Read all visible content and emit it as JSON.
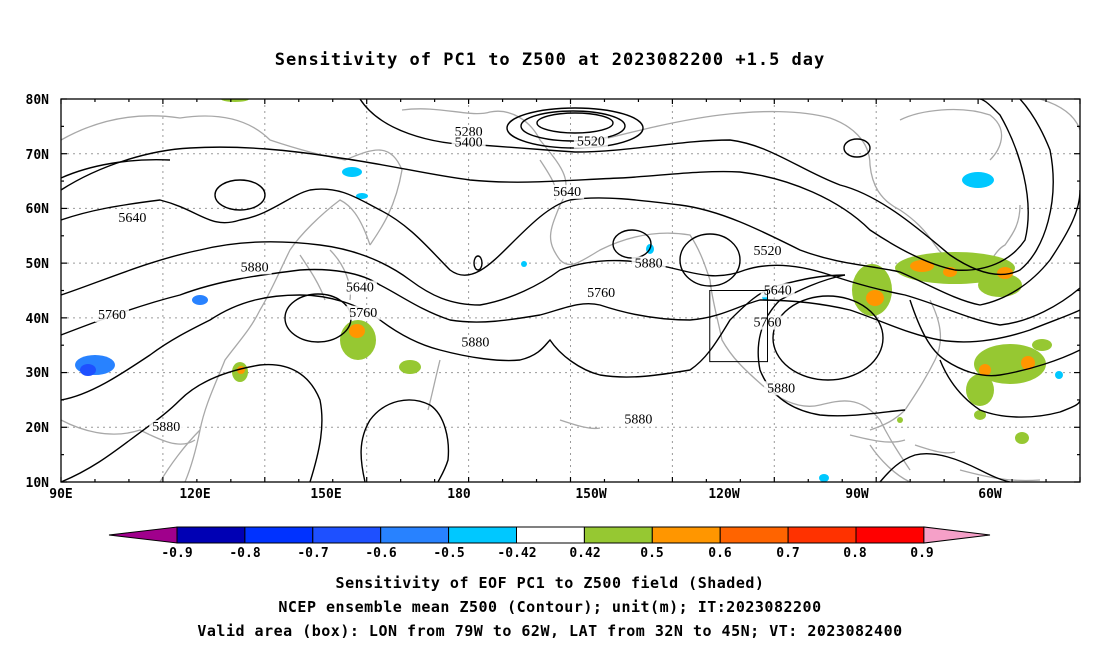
{
  "title": "Sensitivity of PC1 to Z500 at 2023082200 +1.5 day",
  "map": {
    "lat_labels": [
      "80N",
      "70N",
      "60N",
      "50N",
      "40N",
      "30N",
      "20N",
      "10N"
    ],
    "lon_labels": [
      "90E",
      "120E",
      "150E",
      "180",
      "150W",
      "120W",
      "90W",
      "60W"
    ],
    "contour_labels": [
      {
        "text": "5280",
        "lon": -150,
        "lat": 73.2
      },
      {
        "text": "5400",
        "lon": -150,
        "lat": 71.3
      },
      {
        "text": "5520",
        "lon": -114,
        "lat": 71.5
      },
      {
        "text": "5640",
        "lon": -121,
        "lat": 62.3
      },
      {
        "text": "5640",
        "lon": 111,
        "lat": 57.5
      },
      {
        "text": "5640",
        "lon": -182,
        "lat": 44.8
      },
      {
        "text": "5760",
        "lon": 105,
        "lat": 39.8
      },
      {
        "text": "5760",
        "lon": -181,
        "lat": 40.2
      },
      {
        "text": "5760",
        "lon": -111,
        "lat": 43.8
      },
      {
        "text": "5880",
        "lon": 147,
        "lat": 48.5
      },
      {
        "text": "5880",
        "lon": -148,
        "lat": 34.8
      },
      {
        "text": "5880",
        "lon": -97,
        "lat": 49.2
      },
      {
        "text": "5880",
        "lon": -100,
        "lat": 20.7
      },
      {
        "text": "5880",
        "lon": 121,
        "lat": 19.3
      },
      {
        "text": "5880",
        "lon": -58,
        "lat": 26.4
      },
      {
        "text": "5520",
        "lon": -62,
        "lat": 51.5
      },
      {
        "text": "5640",
        "lon": -59,
        "lat": 44.3
      },
      {
        "text": "5760",
        "lon": -62,
        "lat": 38.4
      }
    ],
    "valid_box": {
      "lon_west": -79,
      "lon_east": -62,
      "lat_south": 32,
      "lat_north": 45
    }
  },
  "colorbar": {
    "labels": [
      "-0.9",
      "-0.8",
      "-0.7",
      "-0.6",
      "-0.5",
      "-0.42",
      "0.42",
      "0.5",
      "0.6",
      "0.7",
      "0.8",
      "0.9"
    ],
    "colors": [
      "#a0008c",
      "#0000b4",
      "#0032ff",
      "#1e50ff",
      "#2882ff",
      "#00c8ff",
      "#ffffff",
      "#96c832",
      "#ff9600",
      "#ff6400",
      "#ff3200",
      "#ff0000",
      "#f5a0c8"
    ]
  },
  "captions": {
    "line1": "Sensitivity of EOF PC1 to Z500 field (Shaded)",
    "line2": "NCEP ensemble mean Z500 (Contour); unit(m); IT:2023082200",
    "line3": "Valid area (box): LON from 79W to 62W, LAT from 32N to 45N; VT: 2023082400"
  }
}
